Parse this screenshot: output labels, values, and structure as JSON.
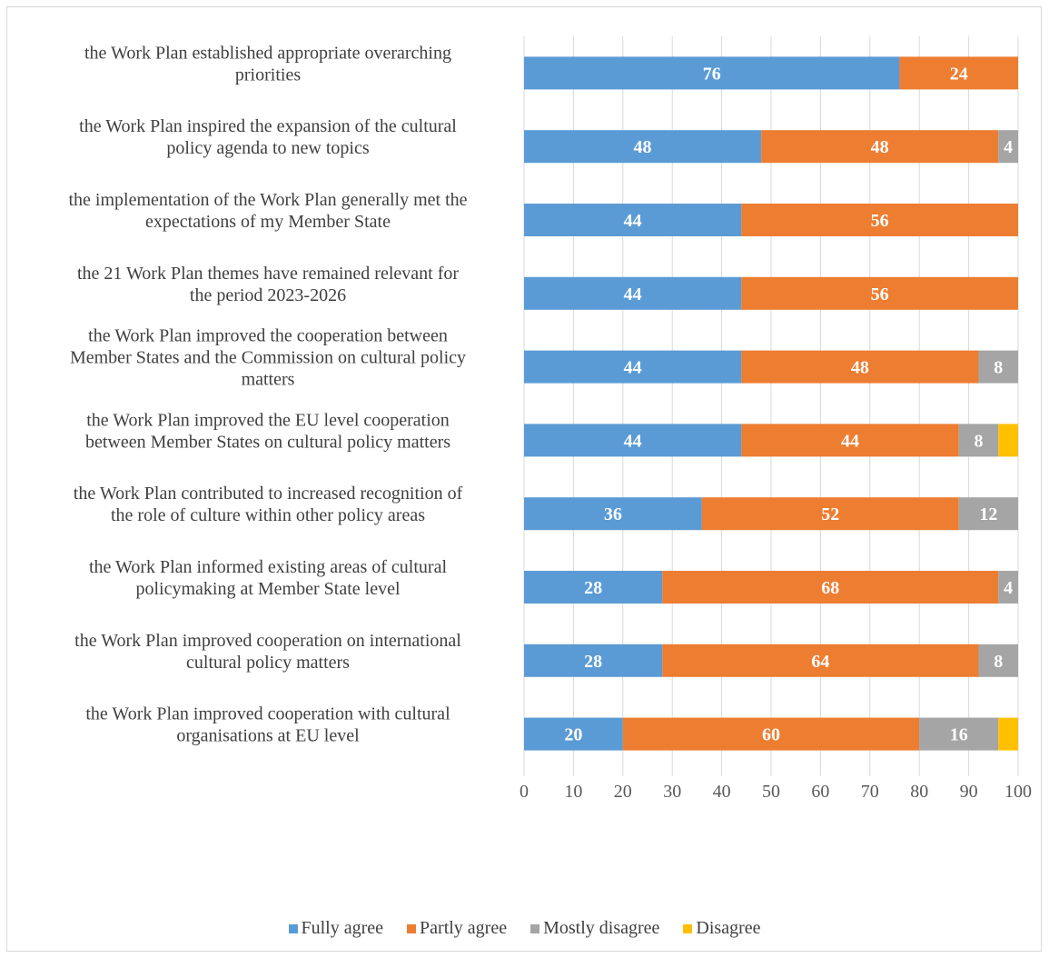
{
  "chart_data": {
    "type": "bar",
    "orientation": "horizontal",
    "stacked": true,
    "title": "",
    "xlabel": "",
    "ylabel": "",
    "xlim": [
      0,
      100
    ],
    "xticks": [
      0,
      10,
      20,
      30,
      40,
      50,
      60,
      70,
      80,
      90,
      100
    ],
    "grid": "vertical",
    "legend_position": "bottom",
    "categories": [
      "the Work Plan established appropriate overarching priorities",
      "the Work Plan inspired the expansion of the cultural policy agenda to new topics",
      "the implementation of the Work Plan generally met the expectations of my Member State",
      "the 21 Work Plan themes have remained relevant for the period 2023-2026",
      "the Work Plan improved the cooperation between Member States and the Commission on cultural policy matters",
      "the Work Plan improved the EU level cooperation between Member States on cultural policy matters",
      "the Work Plan contributed to increased recognition of the role of culture within other policy areas",
      "the Work Plan informed existing areas of cultural policymaking at Member State level",
      "the Work Plan improved cooperation on international cultural policy matters",
      "the Work Plan improved cooperation with cultural organisations at EU level"
    ],
    "category_lines": [
      [
        "the Work Plan established appropriate overarching",
        "priorities"
      ],
      [
        "the Work Plan inspired the expansion of the cultural",
        "policy agenda to new topics"
      ],
      [
        "the implementation of the Work Plan generally met the",
        "expectations of my Member State"
      ],
      [
        "the 21 Work Plan themes have remained relevant for",
        "the period 2023-2026"
      ],
      [
        "the Work Plan improved the cooperation between",
        "Member States and the Commission on cultural policy",
        "matters"
      ],
      [
        "the Work Plan improved the EU level cooperation",
        "between Member States on cultural policy matters"
      ],
      [
        "the Work Plan contributed to increased recognition of",
        "the role of culture within other policy areas"
      ],
      [
        "the Work Plan informed existing areas of cultural",
        "policymaking at Member State level"
      ],
      [
        "the Work Plan improved cooperation on international",
        "cultural policy matters"
      ],
      [
        "the Work Plan improved cooperation with cultural",
        "organisations at EU level"
      ]
    ],
    "series": [
      {
        "name": "Fully agree",
        "color": "#5b9bd5",
        "values": [
          76,
          48,
          44,
          44,
          44,
          44,
          36,
          28,
          28,
          20
        ]
      },
      {
        "name": "Partly agree",
        "color": "#ed7d31",
        "values": [
          24,
          48,
          56,
          56,
          48,
          44,
          52,
          68,
          64,
          60
        ]
      },
      {
        "name": "Mostly disagree",
        "color": "#a5a5a5",
        "values": [
          0,
          4,
          0,
          0,
          8,
          8,
          12,
          4,
          8,
          16
        ]
      },
      {
        "name": "Disagree",
        "color": "#ffc000",
        "values": [
          0,
          0,
          0,
          0,
          0,
          4,
          0,
          0,
          0,
          4
        ]
      }
    ],
    "data_labels": [
      [
        "76",
        "24",
        "",
        ""
      ],
      [
        "48",
        "48",
        "4",
        ""
      ],
      [
        "44",
        "56",
        "",
        ""
      ],
      [
        "44",
        "56",
        "",
        ""
      ],
      [
        "44",
        "48",
        "8",
        ""
      ],
      [
        "44",
        "44",
        "8",
        ""
      ],
      [
        "36",
        "52",
        "12",
        ""
      ],
      [
        "28",
        "68",
        "4",
        ""
      ],
      [
        "28",
        "64",
        "8",
        ""
      ],
      [
        "20",
        "60",
        "16",
        ""
      ]
    ]
  }
}
